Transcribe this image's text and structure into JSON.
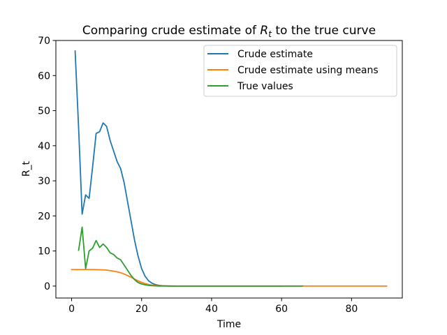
{
  "chart_data": {
    "type": "line",
    "title_prefix": "Comparing crude estimate of ",
    "title_symbol": "R",
    "title_subscript": "t",
    "title_suffix": " to the true curve",
    "xlabel": "Time",
    "ylabel": "R_t",
    "xlim": [
      -4.5,
      94.5
    ],
    "ylim": [
      -3.4,
      70.0
    ],
    "xticks": [
      0,
      20,
      40,
      60,
      80
    ],
    "yticks": [
      0,
      10,
      20,
      30,
      40,
      50,
      60,
      70
    ],
    "grid": false,
    "legend_position": "top-right",
    "series": [
      {
        "name": "Crude estimate",
        "color": "#1f77b4",
        "x": [
          1,
          2,
          3,
          4,
          5,
          6,
          7,
          8,
          9,
          10,
          11,
          12,
          13,
          14,
          15,
          16,
          17,
          18,
          19,
          20,
          21,
          22,
          23,
          24,
          25,
          26,
          27,
          28,
          30,
          35,
          40,
          45,
          50,
          55,
          60
        ],
        "y": [
          67,
          45,
          20.5,
          26,
          25,
          34,
          43.5,
          44,
          46.5,
          45.5,
          41.5,
          38.5,
          35.5,
          33.5,
          29.5,
          24,
          18.5,
          13,
          8.5,
          5,
          2.8,
          1.5,
          0.8,
          0.4,
          0.2,
          0.1,
          0.05,
          0.02,
          0,
          0,
          0,
          0,
          0,
          0,
          0
        ]
      },
      {
        "name": "Crude estimate using means",
        "color": "#ff7f0e",
        "x": [
          0,
          2,
          4,
          6,
          8,
          10,
          11,
          12,
          13,
          14,
          15,
          16,
          17,
          18,
          19,
          20,
          21,
          22,
          23,
          24,
          25,
          26,
          28,
          30,
          35,
          40,
          50,
          60,
          70,
          80,
          90
        ],
        "y": [
          4.7,
          4.7,
          4.7,
          4.7,
          4.65,
          4.55,
          4.4,
          4.25,
          4.05,
          3.8,
          3.45,
          3.0,
          2.5,
          2.0,
          1.5,
          1.05,
          0.7,
          0.45,
          0.28,
          0.17,
          0.1,
          0.06,
          0.02,
          0,
          0,
          0,
          0,
          0,
          0,
          0,
          0
        ]
      },
      {
        "name": "True values",
        "color": "#2ca02c",
        "x": [
          2,
          3,
          4,
          5,
          6,
          7,
          8,
          9,
          10,
          11,
          12,
          13,
          14,
          15,
          16,
          17,
          18,
          19,
          20,
          21,
          22,
          23,
          24,
          25,
          26,
          28,
          30,
          35,
          40,
          45,
          50,
          55,
          60,
          63,
          66
        ],
        "y": [
          10.2,
          16.8,
          5,
          10,
          10.8,
          13,
          11,
          12,
          11,
          9.5,
          9,
          8,
          7.5,
          6,
          4.5,
          3,
          1.8,
          1.0,
          0.6,
          0.35,
          0.2,
          0.1,
          0.05,
          0.02,
          0.01,
          0,
          0,
          0,
          0,
          0,
          0,
          0,
          0,
          0,
          0
        ]
      }
    ]
  }
}
